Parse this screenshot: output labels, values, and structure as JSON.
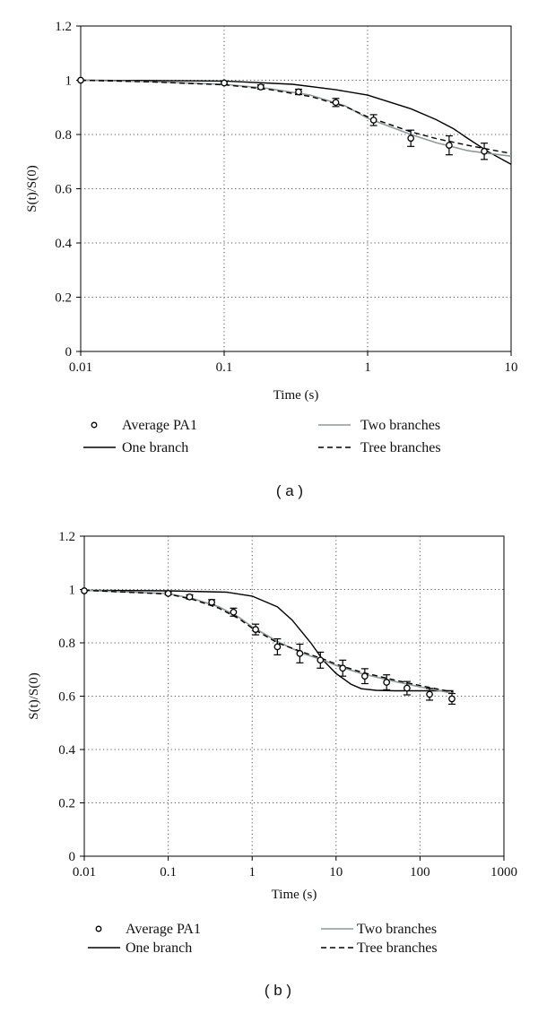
{
  "chart_data": [
    {
      "panel_label": "( a )",
      "type": "line",
      "xscale": "log",
      "xlim": [
        0.01,
        10
      ],
      "ylim": [
        0,
        1.2
      ],
      "xticks": [
        0.01,
        0.1,
        1,
        10
      ],
      "xtick_labels": [
        "0.01",
        "0.1",
        "1",
        "10"
      ],
      "yticks": [
        0,
        0.2,
        0.4,
        0.6,
        0.8,
        1.0,
        1.2
      ],
      "ytick_labels": [
        "0",
        "0.2",
        "0.4",
        "0.6",
        "0.8",
        "1",
        "1.2"
      ],
      "xlabel": "Time (s)",
      "ylabel": "S(t)/S(0)",
      "grid": "dotted",
      "points": {
        "name": "Average PA1",
        "x": [
          0.01,
          0.1,
          0.18,
          0.33,
          0.6,
          1.1,
          2.0,
          3.7,
          6.5
        ],
        "y": [
          1.0,
          0.99,
          0.975,
          0.957,
          0.918,
          0.853,
          0.786,
          0.76,
          0.738
        ],
        "err": [
          0,
          0.005,
          0.008,
          0.01,
          0.015,
          0.02,
          0.03,
          0.035,
          0.03
        ]
      },
      "series": [
        {
          "name": "One branch",
          "style": "solid",
          "color": "#000000",
          "x": [
            0.01,
            0.03,
            0.1,
            0.3,
            0.6,
            1,
            2,
            3,
            4,
            5,
            7,
            10
          ],
          "y": [
            1.0,
            0.999,
            0.997,
            0.985,
            0.965,
            0.945,
            0.895,
            0.855,
            0.82,
            0.785,
            0.735,
            0.69
          ]
        },
        {
          "name": "Two branches",
          "style": "solid",
          "color": "#8c9a9a",
          "x": [
            0.01,
            0.03,
            0.1,
            0.2,
            0.4,
            0.7,
            1,
            2,
            3,
            5,
            7,
            10
          ],
          "y": [
            1.0,
            0.995,
            0.985,
            0.97,
            0.945,
            0.905,
            0.86,
            0.8,
            0.77,
            0.74,
            0.73,
            0.72
          ]
        },
        {
          "name": "Tree branches",
          "style": "dashed",
          "color": "#000000",
          "x": [
            0.01,
            0.03,
            0.1,
            0.2,
            0.4,
            0.7,
            1,
            2,
            3,
            5,
            7,
            10
          ],
          "y": [
            1.0,
            0.994,
            0.983,
            0.967,
            0.94,
            0.903,
            0.865,
            0.81,
            0.785,
            0.76,
            0.745,
            0.73
          ]
        }
      ],
      "legend": [
        {
          "name": "Average PA1",
          "kind": "marker"
        },
        {
          "name": "Two branches",
          "kind": "gray"
        },
        {
          "name": "One branch",
          "kind": "solid"
        },
        {
          "name": "Tree branches",
          "kind": "dashed"
        }
      ]
    },
    {
      "panel_label": "( b )",
      "type": "line",
      "xscale": "log",
      "xlim": [
        0.01,
        1000
      ],
      "ylim": [
        0,
        1.2
      ],
      "xticks": [
        0.01,
        0.1,
        1,
        10,
        100,
        1000
      ],
      "xtick_labels": [
        "0.01",
        "0.1",
        "1",
        "10",
        "100",
        "1000"
      ],
      "yticks": [
        0,
        0.2,
        0.4,
        0.6,
        0.8,
        1.0,
        1.2
      ],
      "ytick_labels": [
        "0",
        "0.2",
        "0.4",
        "0.6",
        "0.8",
        "1",
        "1.2"
      ],
      "xlabel": "Time (s)",
      "ylabel": "S(t)/S(0)",
      "grid": "dotted",
      "points": {
        "name": "Average PA1",
        "x": [
          0.01,
          0.1,
          0.18,
          0.33,
          0.6,
          1.1,
          2.0,
          3.7,
          6.5,
          12,
          22,
          40,
          70,
          130,
          240
        ],
        "y": [
          0.995,
          0.985,
          0.972,
          0.952,
          0.915,
          0.85,
          0.785,
          0.76,
          0.735,
          0.705,
          0.675,
          0.652,
          0.63,
          0.607,
          0.59
        ],
        "err": [
          0,
          0.005,
          0.008,
          0.01,
          0.015,
          0.02,
          0.03,
          0.035,
          0.03,
          0.03,
          0.028,
          0.028,
          0.025,
          0.022,
          0.02
        ]
      },
      "series": [
        {
          "name": "One branch",
          "style": "solid",
          "color": "#000000",
          "x": [
            0.01,
            0.1,
            0.5,
            1,
            2,
            3,
            5,
            7,
            10,
            15,
            20,
            30,
            50,
            100,
            250
          ],
          "y": [
            0.997,
            0.995,
            0.99,
            0.975,
            0.935,
            0.885,
            0.8,
            0.735,
            0.685,
            0.645,
            0.628,
            0.622,
            0.62,
            0.62,
            0.62
          ]
        },
        {
          "name": "Two branches",
          "style": "solid",
          "color": "#8c9a9a",
          "x": [
            0.01,
            0.1,
            0.2,
            0.4,
            0.7,
            1,
            2,
            4,
            7,
            10,
            20,
            50,
            100,
            250
          ],
          "y": [
            0.997,
            0.985,
            0.965,
            0.935,
            0.895,
            0.86,
            0.805,
            0.76,
            0.735,
            0.715,
            0.685,
            0.655,
            0.635,
            0.61
          ]
        },
        {
          "name": "Tree branches",
          "style": "dashed",
          "color": "#000000",
          "x": [
            0.01,
            0.1,
            0.2,
            0.4,
            0.7,
            1,
            2,
            4,
            7,
            10,
            20,
            50,
            100,
            250
          ],
          "y": [
            0.997,
            0.983,
            0.962,
            0.93,
            0.89,
            0.855,
            0.8,
            0.765,
            0.74,
            0.72,
            0.69,
            0.66,
            0.64,
            0.615
          ]
        }
      ],
      "legend": [
        {
          "name": "Average PA1",
          "kind": "marker"
        },
        {
          "name": "Two branches",
          "kind": "gray"
        },
        {
          "name": "One branch",
          "kind": "solid"
        },
        {
          "name": "Tree branches",
          "kind": "dashed"
        }
      ]
    }
  ]
}
